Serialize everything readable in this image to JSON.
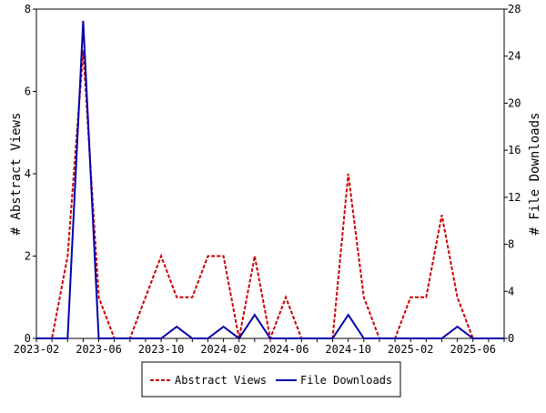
{
  "chart_data": {
    "type": "line",
    "xlabel": "",
    "ylabel": "# Abstract Views",
    "y2label": "# File Downloads",
    "ylim": [
      0,
      8
    ],
    "y2lim": [
      0,
      28
    ],
    "yticks": [
      "0",
      "2",
      "4",
      "6",
      "8"
    ],
    "y2ticks": [
      "0",
      "4",
      "8",
      "12",
      "16",
      "20",
      "24",
      "28"
    ],
    "xticks": [
      "2023-02",
      "2023-06",
      "2023-10",
      "2024-02",
      "2024-06",
      "2024-10",
      "2025-02",
      "2025-06"
    ],
    "x": [
      "2023-02",
      "2023-03",
      "2023-04",
      "2023-05",
      "2023-06",
      "2023-07",
      "2023-08",
      "2023-09",
      "2023-10",
      "2023-11",
      "2023-12",
      "2024-01",
      "2024-02",
      "2024-03",
      "2024-04",
      "2024-05",
      "2024-06",
      "2024-07",
      "2024-08",
      "2024-09",
      "2024-10",
      "2024-11",
      "2024-12",
      "2025-01",
      "2025-02",
      "2025-03",
      "2025-04",
      "2025-05",
      "2025-06",
      "2025-07",
      "2025-08"
    ],
    "grid": false,
    "legend_position": "bottom-center",
    "series": [
      {
        "name": "Abstract Views",
        "axis": "left",
        "color": "#cc0000",
        "style": "dashed",
        "values": [
          0,
          0,
          2,
          7,
          1,
          0,
          0,
          1,
          2,
          1,
          1,
          2,
          2,
          0,
          2,
          0,
          1,
          0,
          0,
          0,
          4,
          1,
          0,
          0,
          1,
          1,
          3,
          1,
          0,
          0,
          0
        ]
      },
      {
        "name": "File Downloads",
        "axis": "right",
        "color": "#0000aa",
        "style": "solid",
        "values": [
          0,
          0,
          0,
          27,
          0,
          0,
          0,
          0,
          0,
          1,
          0,
          0,
          1,
          0,
          2,
          0,
          0,
          0,
          0,
          0,
          2,
          0,
          0,
          0,
          0,
          0,
          0,
          1,
          0,
          0,
          0
        ]
      }
    ]
  }
}
